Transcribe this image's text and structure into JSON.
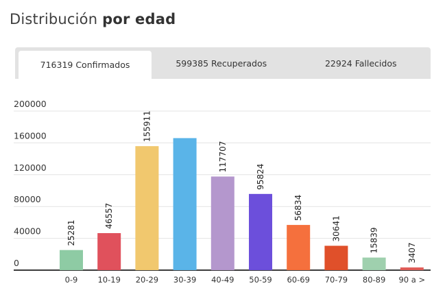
{
  "header": {
    "title_regular": "Distribución",
    "title_bold": "por edad"
  },
  "tabs": [
    {
      "label": "716319 Confirmados",
      "active": true
    },
    {
      "label": "599385 Recuperados",
      "active": false
    },
    {
      "label": "22924 Fallecidos",
      "active": false
    }
  ],
  "chart_data": {
    "type": "bar",
    "categories": [
      "0-9",
      "10-19",
      "20-29",
      "30-39",
      "40-49",
      "50-59",
      "60-69",
      "70-79",
      "80-89",
      "90 a >"
    ],
    "values": [
      25281,
      46557,
      155911,
      166000,
      117707,
      95824,
      56834,
      30641,
      15839,
      3407
    ],
    "data_labels": [
      "25281",
      "46557",
      "155911",
      "",
      "117707",
      "95824",
      "56834",
      "30641",
      "15839",
      "3407"
    ],
    "colors": [
      "#8ecba4",
      "#e0515c",
      "#f1c86e",
      "#5ab4e8",
      "#b497cd",
      "#6c4fdb",
      "#f5703d",
      "#e0502a",
      "#9fd0ae",
      "#e05d58"
    ],
    "yticks": [
      0,
      40000,
      80000,
      120000,
      160000,
      200000
    ],
    "ytick_labels": [
      "0",
      "40000",
      "80000",
      "120000",
      "160000",
      "200000"
    ],
    "ylim": [
      0,
      200000
    ],
    "grid": true,
    "xlabel": "",
    "ylabel": ""
  }
}
